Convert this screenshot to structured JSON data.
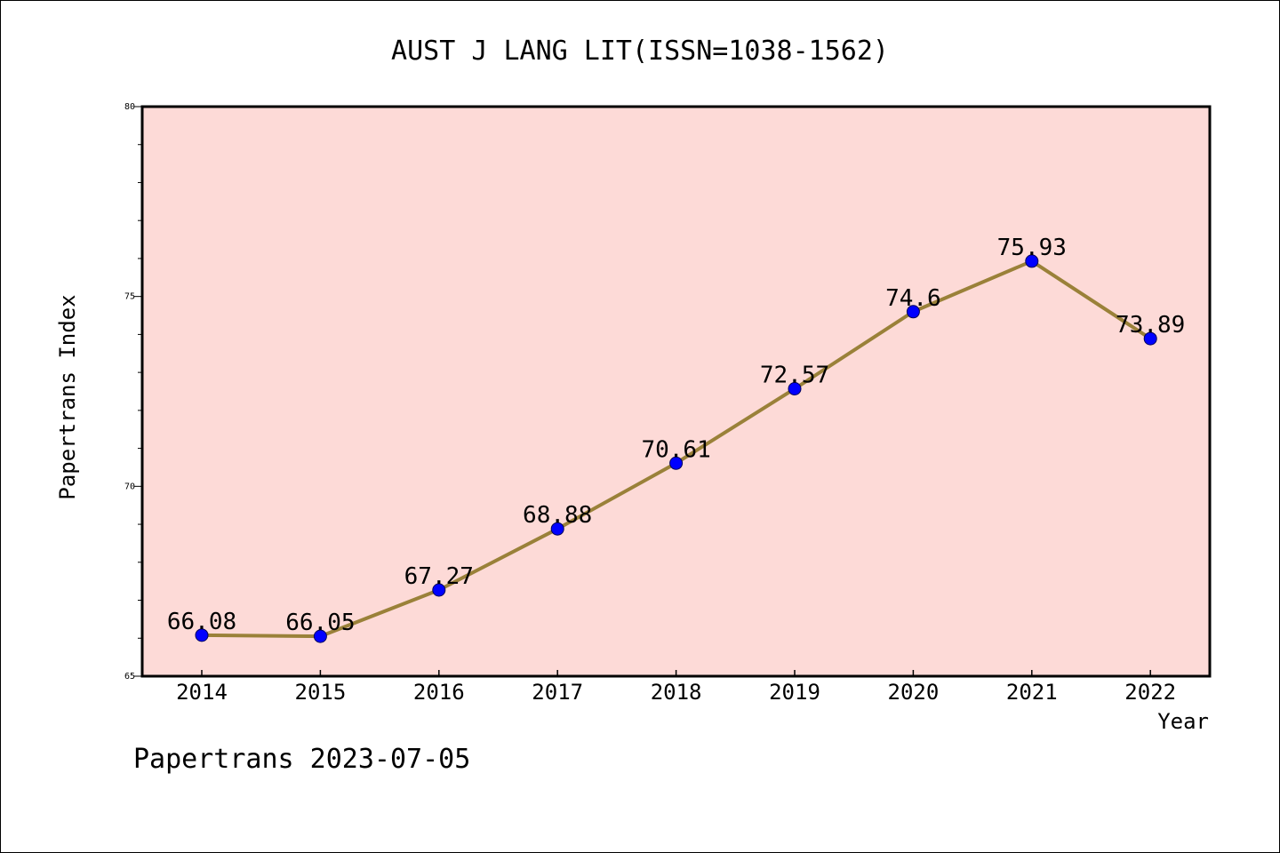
{
  "chart_data": {
    "type": "line",
    "title": "AUST J LANG LIT(ISSN=1038-1562)",
    "xlabel": "Year",
    "ylabel": "Papertrans Index",
    "categories": [
      "2014",
      "2015",
      "2016",
      "2017",
      "2018",
      "2019",
      "2020",
      "2021",
      "2022"
    ],
    "series": [
      {
        "values": [
          66.08,
          66.05,
          67.27,
          68.88,
          70.61,
          72.57,
          74.6,
          75.93,
          73.89
        ],
        "labels": [
          "66.08",
          "66.05",
          "67.27",
          "68.88",
          "70.61",
          "72.57",
          "74.6",
          "75.93",
          "73.89"
        ]
      }
    ],
    "ylim": [
      65,
      80
    ],
    "yticks": [
      "65",
      "70",
      "75",
      "80"
    ],
    "grid": false,
    "legend": "none",
    "colors": {
      "plot_background": "#fddad7",
      "line": "#9a8139",
      "marker": "#0000ff"
    }
  },
  "footer": {
    "watermark": "Papertrans 2023-07-05"
  }
}
